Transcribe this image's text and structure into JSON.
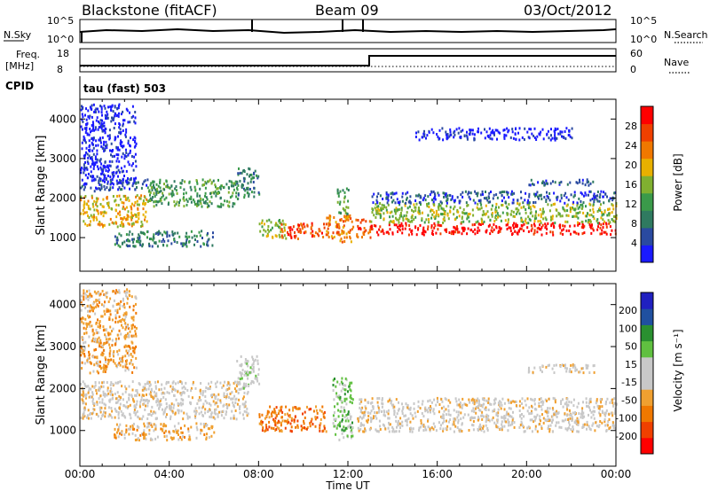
{
  "header": {
    "station": "Blackstone (fitACF)",
    "beam": "Beam 09",
    "date": "03/Oct/2012"
  },
  "top_panels": {
    "nsky_label": "N.Sky",
    "nsky_ticks": [
      "10^5",
      "10^0"
    ],
    "nsearch_label": "N.Search",
    "nsearch_ticks": [
      "10^5",
      "10^0"
    ],
    "freq_label_line1": "Freq.",
    "freq_label_line2": "[MHz]",
    "freq_ticks": [
      "18",
      "8"
    ],
    "nave_label": "Nave",
    "nave_ticks": [
      "60",
      "0"
    ],
    "cpid_label": "CPID",
    "cpid_value": "tau (fast) 503"
  },
  "colors": {
    "power_scale": [
      "#1a1aff",
      "#2a4aa0",
      "#2f7a60",
      "#3a9a4a",
      "#80b030",
      "#e8b000",
      "#f07800",
      "#f04000",
      "#ff0000"
    ],
    "velocity_scale": [
      "#ff0000",
      "#f04000",
      "#f07800",
      "#f0a030",
      "#c8c8c8",
      "#c8c8c8",
      "#60c040",
      "#2a9030",
      "#2050a0",
      "#2020c0"
    ]
  },
  "chart_data": [
    {
      "type": "heatmap",
      "name": "power",
      "xlabel": "Time UT",
      "ylabel": "Slant Range [km]",
      "xlim": [
        0,
        24
      ],
      "ylim": [
        150,
        4500
      ],
      "x_ticks": [
        "00:00",
        "04:00",
        "08:00",
        "12:00",
        "16:00",
        "20:00",
        "00:00"
      ],
      "y_ticks": [
        "1000",
        "2000",
        "3000",
        "4000"
      ],
      "y_tick_values": [
        1000,
        2000,
        3000,
        4000
      ],
      "colorbar_label": "Power [dB]",
      "colorbar_ticks": [
        "4",
        "8",
        "12",
        "16",
        "20",
        "24",
        "28"
      ],
      "colorbar_range": [
        0,
        30
      ],
      "bands": [
        {
          "t0": 0.0,
          "t1": 3.0,
          "r0": 1300,
          "r1": 2100,
          "level": 5
        },
        {
          "t0": 3.0,
          "t1": 7.0,
          "r0": 1800,
          "r1": 2500,
          "level": 3
        },
        {
          "t0": 7.0,
          "t1": 8.0,
          "r0": 2000,
          "r1": 2800,
          "level": 2
        },
        {
          "t0": 0.0,
          "t1": 3.0,
          "r0": 2200,
          "r1": 2500,
          "level": 1
        },
        {
          "t0": 1.5,
          "t1": 6.0,
          "r0": 800,
          "r1": 1200,
          "level": 2
        },
        {
          "t0": 8.0,
          "t1": 9.2,
          "r0": 1000,
          "r1": 1500,
          "level": 4
        },
        {
          "t0": 9.0,
          "t1": 11.0,
          "r0": 1000,
          "r1": 1400,
          "level": 7
        },
        {
          "t0": 11.0,
          "t1": 12.4,
          "r0": 900,
          "r1": 1600,
          "level": 6
        },
        {
          "t0": 11.5,
          "t1": 12.0,
          "r0": 1600,
          "r1": 2300,
          "level": 3
        },
        {
          "t0": 12.4,
          "t1": 13.0,
          "r0": 1000,
          "r1": 1500,
          "level": 7
        },
        {
          "t0": 13.0,
          "t1": 24.0,
          "r0": 1100,
          "r1": 1400,
          "level": 8
        },
        {
          "t0": 13.0,
          "t1": 24.0,
          "r0": 1400,
          "r1": 1900,
          "level": 4
        },
        {
          "t0": 13.0,
          "t1": 24.0,
          "r0": 1900,
          "r1": 2200,
          "level": 1
        },
        {
          "t0": 20.0,
          "t1": 23.0,
          "r0": 2350,
          "r1": 2500,
          "level": 1
        },
        {
          "t0": 0.0,
          "t1": 2.5,
          "r0": 2400,
          "r1": 4400,
          "level": 0
        },
        {
          "t0": 15.0,
          "t1": 22.0,
          "r0": 3500,
          "r1": 3800,
          "level": 0
        }
      ]
    },
    {
      "type": "heatmap",
      "name": "velocity",
      "xlabel": "Time UT",
      "ylabel": "Slant Range [km]",
      "xlim": [
        0,
        24
      ],
      "ylim": [
        150,
        4500
      ],
      "x_ticks": [
        "00:00",
        "04:00",
        "08:00",
        "12:00",
        "16:00",
        "20:00",
        "00:00"
      ],
      "y_ticks": [
        "1000",
        "2000",
        "3000",
        "4000"
      ],
      "y_tick_values": [
        1000,
        2000,
        3000,
        4000
      ],
      "colorbar_label": "Velocity [m s⁻¹]",
      "colorbar_ticks": [
        "200",
        "100",
        "50",
        "15",
        "-15",
        "-50",
        "-100",
        "-200"
      ],
      "colorbar_range": [
        -250,
        250
      ],
      "bands": [
        {
          "t0": 0.0,
          "t1": 7.5,
          "r0": 1300,
          "r1": 2200,
          "level": 4
        },
        {
          "t0": 7.0,
          "t1": 8.0,
          "r0": 2000,
          "r1": 2800,
          "level": 5
        },
        {
          "t0": 1.5,
          "t1": 6.0,
          "r0": 800,
          "r1": 1200,
          "level": 3
        },
        {
          "t0": 8.0,
          "t1": 11.0,
          "r0": 1000,
          "r1": 1600,
          "level": 2
        },
        {
          "t0": 11.3,
          "t1": 12.2,
          "r0": 800,
          "r1": 2300,
          "level": 6
        },
        {
          "t0": 12.4,
          "t1": 24.0,
          "r0": 1000,
          "r1": 1800,
          "level": 4
        },
        {
          "t0": 20.0,
          "t1": 23.0,
          "r0": 2400,
          "r1": 2600,
          "level": 4
        },
        {
          "t0": 0.0,
          "t1": 2.5,
          "r0": 2400,
          "r1": 4400,
          "level": 3
        }
      ]
    }
  ]
}
